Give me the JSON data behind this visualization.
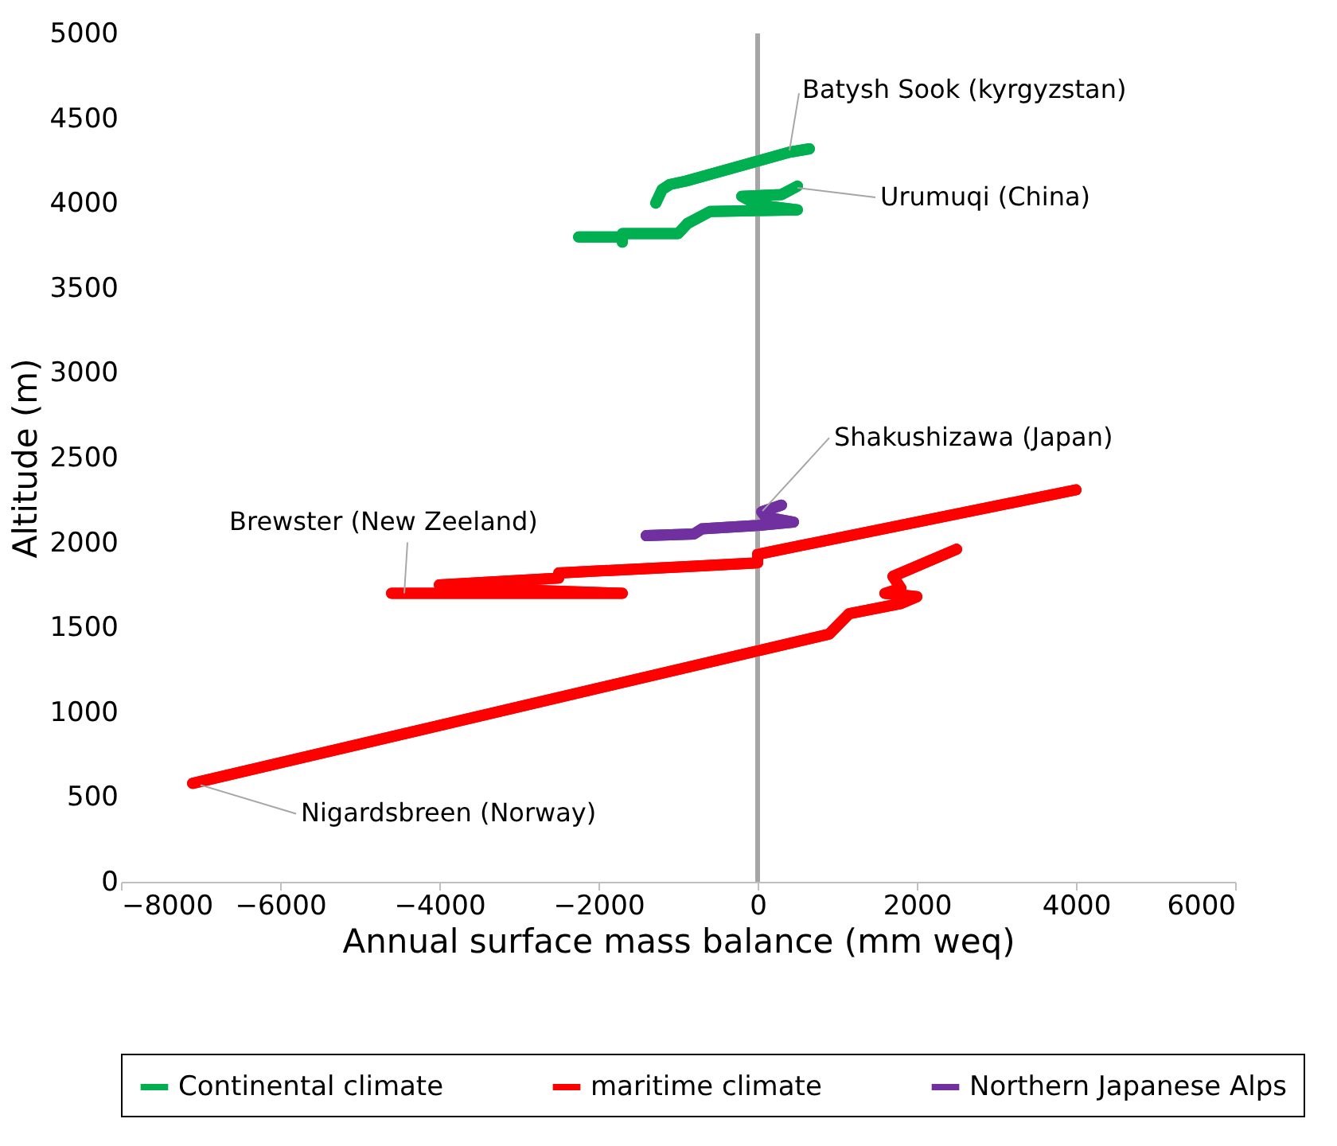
{
  "chart_data": {
    "type": "line",
    "xlabel": "Annual surface mass balance (mm weq)",
    "ylabel": "Altitude (m)",
    "xlim": [
      -8000,
      6000
    ],
    "xticks": [
      -8000,
      -6000,
      -4000,
      -2000,
      0,
      2000,
      4000,
      6000
    ],
    "ylim": [
      0,
      5000
    ],
    "yticks": [
      0,
      500,
      1000,
      1500,
      2000,
      2500,
      3000,
      3500,
      4000,
      4500,
      5000
    ],
    "grid": false,
    "legend": "bottom",
    "line_style": "solid",
    "ref_lines": [
      {
        "axis": "x",
        "value": 0,
        "color": "#a6a6a6"
      }
    ],
    "series": [
      {
        "name": "Continental climate",
        "color": "#00b050",
        "x": [
          -1280,
          -1200,
          -1100,
          -900,
          400,
          650,
          null,
          -2250,
          -1700,
          -1700,
          -1700,
          -1000,
          -880,
          -600,
          500,
          0,
          -200,
          300,
          500
        ],
        "values": [
          4000,
          4080,
          4110,
          4130,
          4300,
          4320,
          null,
          3800,
          3800,
          3770,
          3820,
          3820,
          3880,
          3950,
          3960,
          3990,
          4040,
          4050,
          4100
        ]
      },
      {
        "name": "maritime climate",
        "color": "#ff0000",
        "x": [
          -4600,
          -1700,
          -3000,
          -4000,
          -2500,
          -2500,
          -800,
          0,
          0,
          4000,
          null,
          -7100,
          900,
          1150,
          1800,
          2000,
          1600,
          1800,
          1700,
          2500
        ],
        "values": [
          1700,
          1700,
          1720,
          1750,
          1790,
          1820,
          1860,
          1880,
          1930,
          2310,
          null,
          580,
          1460,
          1580,
          1640,
          1680,
          1700,
          1730,
          1800,
          1960
        ]
      },
      {
        "name": "Northern Japanese Alps",
        "color": "#7030a0",
        "x": [
          -1400,
          -800,
          -700,
          0,
          450,
          100,
          50,
          300
        ],
        "values": [
          2040,
          2050,
          2080,
          2100,
          2120,
          2150,
          2180,
          2220
        ]
      }
    ],
    "annotations": [
      {
        "text": "Batysh Sook (kyrgyzstan)",
        "x": 400,
        "y": 4310
      },
      {
        "text": "Urumuqi (China)",
        "x": 500,
        "y": 4090
      },
      {
        "text": "Shakushizawa (Japan)",
        "x": 60,
        "y": 2185
      },
      {
        "text": "Brewster (New Zeeland)",
        "x": -4440,
        "y": 1700
      },
      {
        "text": "Nigardsbreen (Norway)",
        "x": -7000,
        "y": 570
      }
    ]
  }
}
